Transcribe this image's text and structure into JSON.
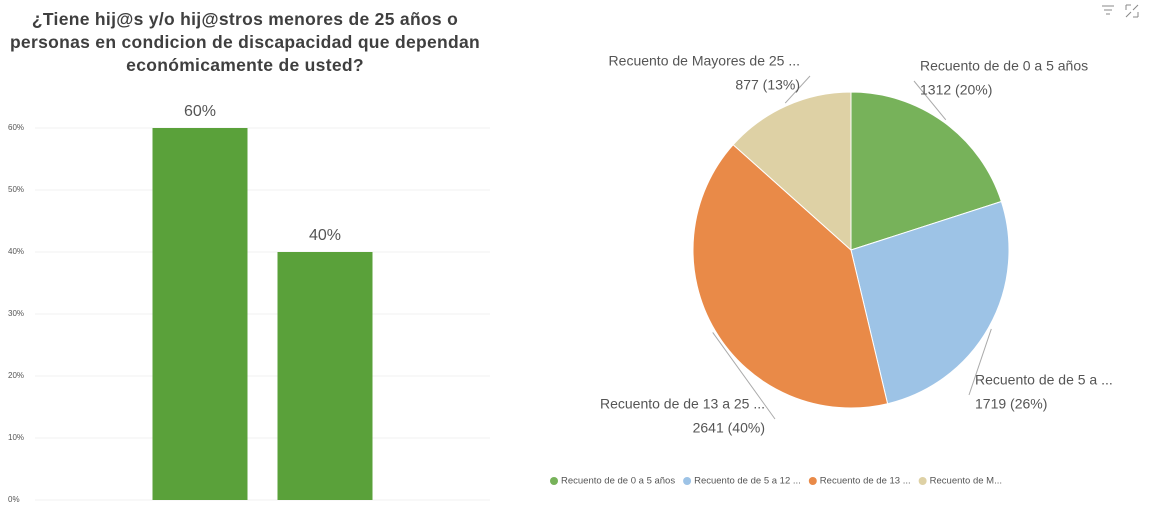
{
  "chart_data": [
    {
      "type": "bar",
      "title": "¿Tiene hij@s y/o hij@stros menores de 25 años o personas en condicion de discapacidad que dependan económicamente de usted?",
      "categories": [
        null,
        null
      ],
      "values": [
        60,
        40
      ],
      "value_labels": [
        "60%",
        "40%"
      ],
      "color": "#5aa13a",
      "ylim": [
        0,
        60
      ],
      "yticks": [
        {
          "value": 0,
          "label": "0%"
        },
        {
          "value": 10,
          "label": "10%"
        },
        {
          "value": 20,
          "label": "20%"
        },
        {
          "value": 30,
          "label": "30%"
        },
        {
          "value": 40,
          "label": "40%"
        },
        {
          "value": 50,
          "label": "50%"
        },
        {
          "value": 60,
          "label": "60%"
        }
      ],
      "grid": true
    },
    {
      "type": "pie",
      "categories": [
        "Recuento de de 0 a 5 años",
        "Recuento de de 5 a ...",
        "Recuento de de 13 a 25 ...",
        "Recuento de Mayores de 25 ..."
      ],
      "legend_labels": [
        "Recuento de de 0 a 5 años",
        "Recuento de de 5 a 12 ...",
        "Recuento de de 13 ...",
        "Recuento de M..."
      ],
      "values": [
        1312,
        1719,
        2641,
        877
      ],
      "value_labels": [
        "1312 (20%)",
        "1719 (26%)",
        "2641 (40%)",
        "877 (13%)"
      ],
      "colors": [
        "#77b25a",
        "#9dc3e6",
        "#e98a48",
        "#ded1a5"
      ],
      "legend": "bottom"
    }
  ]
}
